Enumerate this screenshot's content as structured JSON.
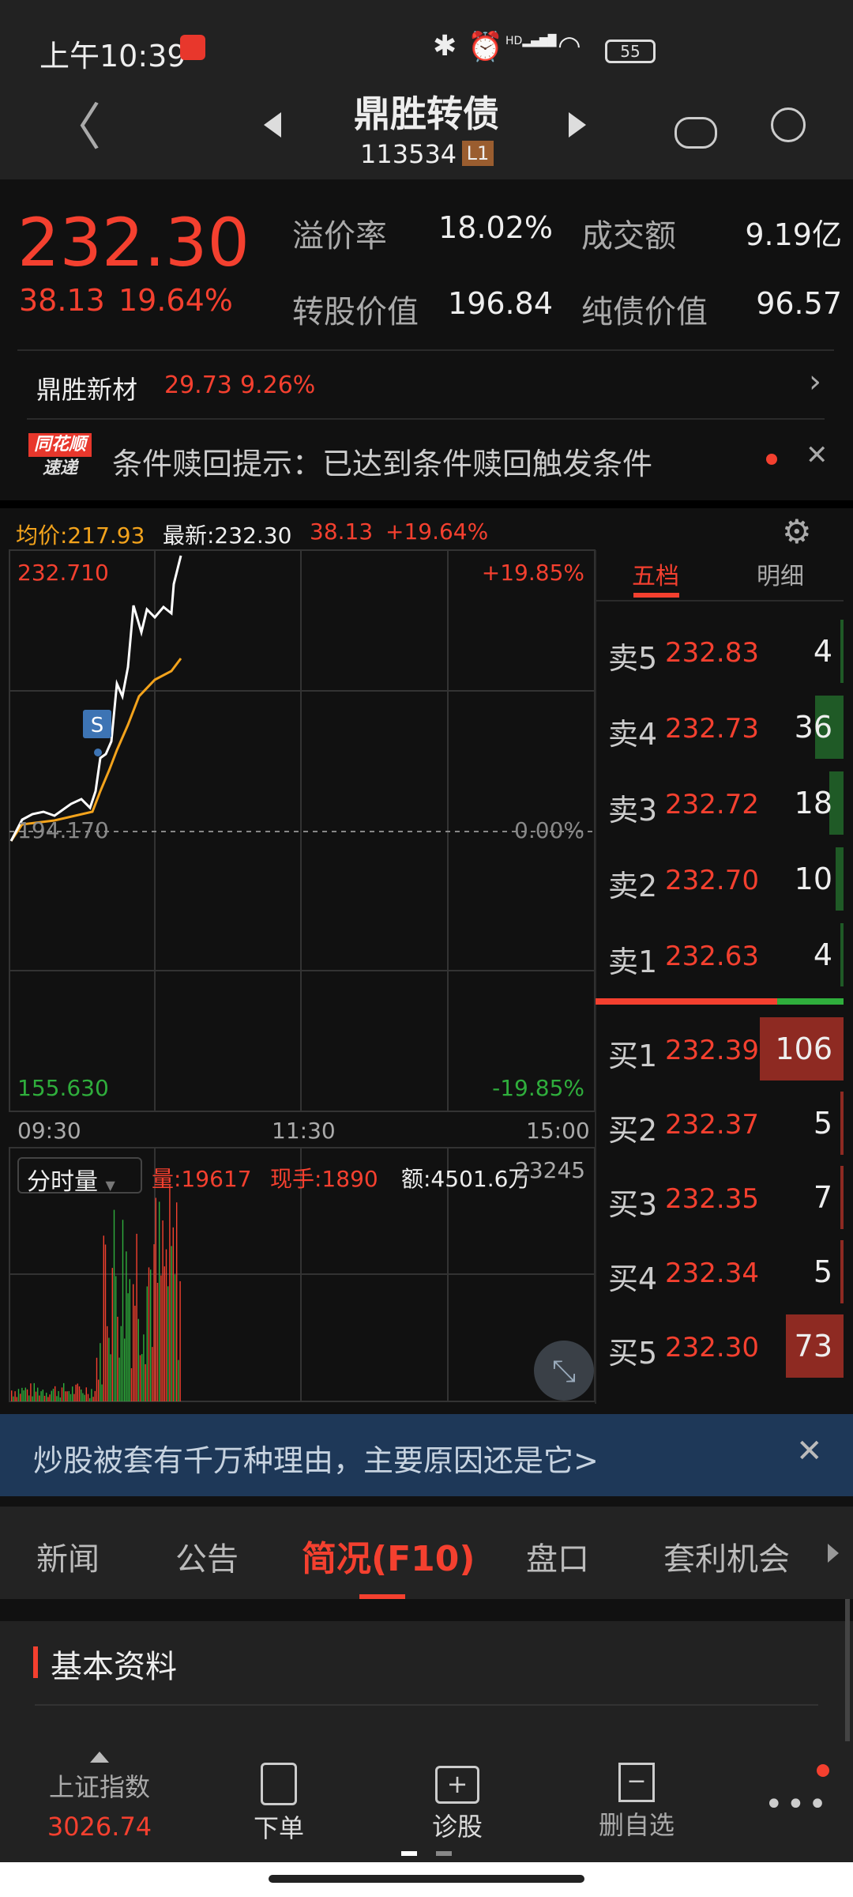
{
  "status_bar": {
    "time": "上午10:39",
    "battery": "55",
    "network": "HD"
  },
  "header": {
    "title": "鼎胜转债",
    "code": "113534",
    "level_badge": "L1"
  },
  "quote": {
    "price": "232.30",
    "change": "38.13",
    "change_pct": "19.64%",
    "stats": [
      {
        "label": "溢价率",
        "value": "18.02%"
      },
      {
        "label": "成交额",
        "value": "9.19亿"
      },
      {
        "label": "转股价值",
        "value": "196.84"
      },
      {
        "label": "纯债价值",
        "value": "96.57"
      }
    ]
  },
  "underlying": {
    "name": "鼎胜新材",
    "price": "29.73",
    "change_pct": "9.26%"
  },
  "notice": {
    "logo_top": "同花顺",
    "logo_bottom": "速递",
    "text": "条件赎回提示：已达到条件赎回触发条件"
  },
  "chart": {
    "avg_label": "均价:217.93",
    "latest_label": "最新:232.30",
    "change": "38.13",
    "change_pct": "+19.64%",
    "high": "232.710",
    "high_pct": "+19.85%",
    "mid": "194.170",
    "mid_pct": "0.00%",
    "low": "155.630",
    "low_pct": "-19.85%",
    "times": [
      "09:30",
      "11:30",
      "15:00"
    ],
    "marker": "S",
    "volume": {
      "selector": "分时量",
      "vol": "量:19617",
      "current": "现手:1890",
      "amount": "额:4501.6万",
      "max": "23245"
    },
    "colors": {
      "price_line": "#ffffff",
      "avg_line": "#f3a31c",
      "up": "#f4402f",
      "down": "#2fae3c"
    }
  },
  "order_book": {
    "tabs": [
      "五档",
      "明细"
    ],
    "active_tab": 0,
    "asks": [
      {
        "label": "卖5",
        "price": "232.83",
        "qty": "4"
      },
      {
        "label": "卖4",
        "price": "232.73",
        "qty": "36"
      },
      {
        "label": "卖3",
        "price": "232.72",
        "qty": "18"
      },
      {
        "label": "卖2",
        "price": "232.70",
        "qty": "10"
      },
      {
        "label": "卖1",
        "price": "232.63",
        "qty": "4"
      }
    ],
    "bids": [
      {
        "label": "买1",
        "price": "232.39",
        "qty": "106"
      },
      {
        "label": "买2",
        "price": "232.37",
        "qty": "5"
      },
      {
        "label": "买3",
        "price": "232.35",
        "qty": "7"
      },
      {
        "label": "买4",
        "price": "232.34",
        "qty": "5"
      },
      {
        "label": "买5",
        "price": "232.30",
        "qty": "73"
      }
    ]
  },
  "banner": {
    "text": "炒股被套有千万种理由，主要原因还是它>"
  },
  "tabs": [
    {
      "label": "新闻"
    },
    {
      "label": "公告"
    },
    {
      "label": "简况(F10)"
    },
    {
      "label": "盘口"
    },
    {
      "label": "套利机会"
    }
  ],
  "section": {
    "title": "基本资料"
  },
  "bottom_nav": {
    "index_name": "上证指数",
    "index_value": "3026.74",
    "items": [
      {
        "label": "下单"
      },
      {
        "label": "诊股"
      },
      {
        "label": "删自选"
      }
    ]
  }
}
